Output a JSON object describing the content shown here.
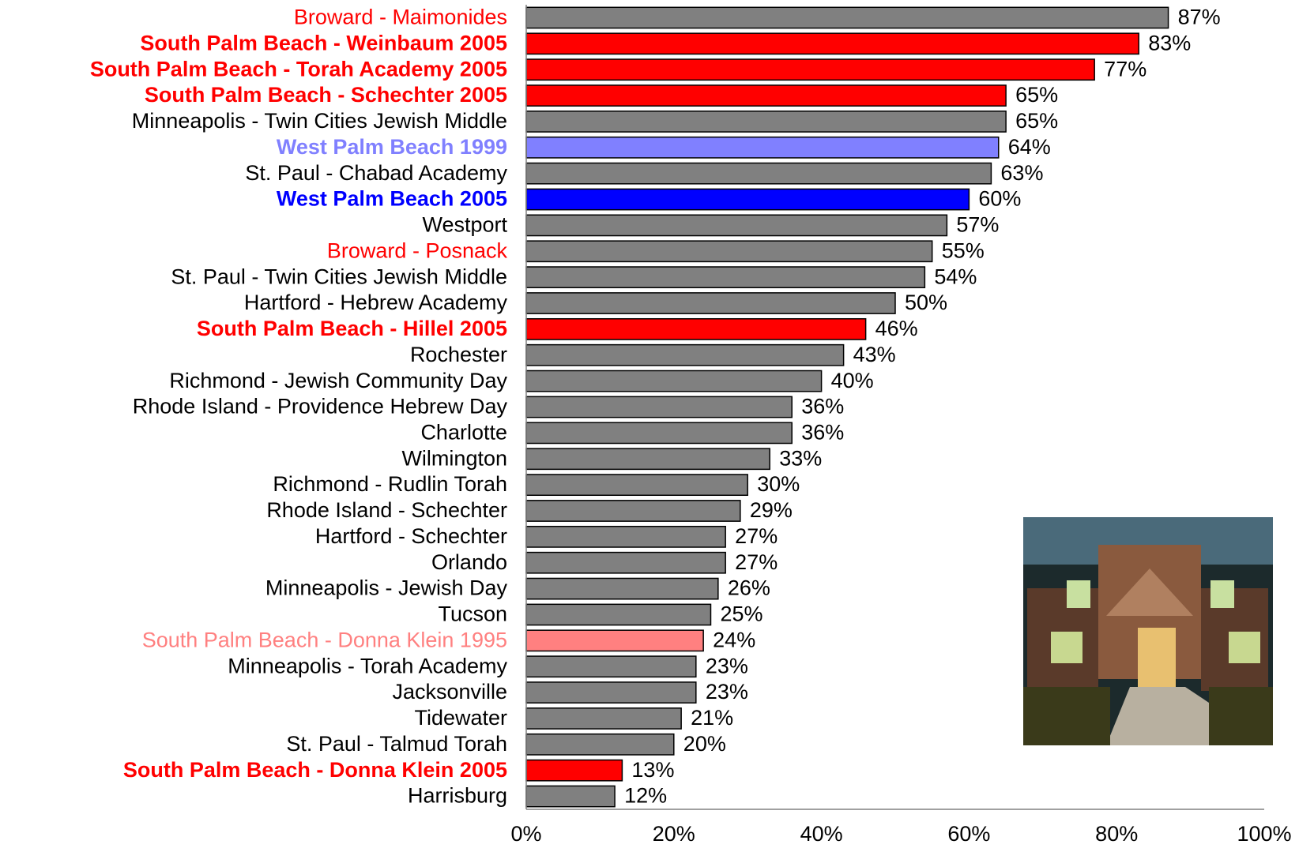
{
  "chart_data": {
    "type": "bar",
    "orientation": "horizontal",
    "categories": [
      "Broward - Maimonides",
      "South Palm Beach - Weinbaum 2005",
      "South Palm Beach - Torah Academy 2005",
      "South Palm Beach - Schechter 2005",
      "Minneapolis - Twin Cities Jewish Middle",
      "West Palm Beach 1999",
      "St. Paul - Chabad Academy",
      "West Palm Beach 2005",
      "Westport",
      "Broward - Posnack",
      "St. Paul - Twin Cities Jewish Middle",
      "Hartford - Hebrew Academy",
      "South Palm Beach - Hillel 2005",
      "Rochester",
      "Richmond - Jewish Community Day",
      "Rhode Island - Providence Hebrew Day",
      "Charlotte",
      "Wilmington",
      "Richmond - Rudlin Torah",
      "Rhode Island - Schechter",
      "Hartford - Schechter",
      "Orlando",
      "Minneapolis - Jewish Day",
      "Tucson",
      "South Palm Beach - Donna Klein 1995",
      "Minneapolis - Torah Academy",
      "Jacksonville",
      "Tidewater",
      "St. Paul - Talmud Torah",
      "South Palm Beach - Donna Klein 2005",
      "Harrisburg"
    ],
    "values": [
      87,
      83,
      77,
      65,
      65,
      64,
      63,
      60,
      57,
      55,
      54,
      50,
      46,
      43,
      40,
      36,
      36,
      33,
      30,
      29,
      27,
      27,
      26,
      25,
      24,
      23,
      23,
      21,
      20,
      13,
      12
    ],
    "value_labels": [
      "87%",
      "83%",
      "77%",
      "65%",
      "65%",
      "64%",
      "63%",
      "60%",
      "57%",
      "55%",
      "54%",
      "50%",
      "46%",
      "43%",
      "40%",
      "36%",
      "36%",
      "33%",
      "30%",
      "29%",
      "27%",
      "27%",
      "26%",
      "25%",
      "24%",
      "23%",
      "23%",
      "21%",
      "20%",
      "13%",
      "12%"
    ],
    "colors": [
      "#808080",
      "#ff0000",
      "#ff0000",
      "#ff0000",
      "#808080",
      "#8080ff",
      "#808080",
      "#0000ff",
      "#808080",
      "#808080",
      "#808080",
      "#808080",
      "#ff0000",
      "#808080",
      "#808080",
      "#808080",
      "#808080",
      "#808080",
      "#808080",
      "#808080",
      "#808080",
      "#808080",
      "#808080",
      "#808080",
      "#ff8080",
      "#808080",
      "#808080",
      "#808080",
      "#808080",
      "#ff0000",
      "#808080"
    ],
    "label_colors": [
      "#ff0000",
      "#ff0000",
      "#ff0000",
      "#ff0000",
      "#000000",
      "#8080ff",
      "#000000",
      "#0000ff",
      "#000000",
      "#ff0000",
      "#000000",
      "#000000",
      "#ff0000",
      "#000000",
      "#000000",
      "#000000",
      "#000000",
      "#000000",
      "#000000",
      "#000000",
      "#000000",
      "#000000",
      "#000000",
      "#000000",
      "#ff8080",
      "#000000",
      "#000000",
      "#000000",
      "#000000",
      "#ff0000",
      "#000000"
    ],
    "label_bold": [
      false,
      true,
      true,
      true,
      false,
      true,
      false,
      true,
      false,
      false,
      false,
      false,
      true,
      false,
      false,
      false,
      false,
      false,
      false,
      false,
      false,
      false,
      false,
      false,
      false,
      false,
      false,
      false,
      false,
      true,
      false
    ],
    "xlim": [
      0,
      100
    ],
    "xticks": [
      {
        "value": 0,
        "label": "0%"
      },
      {
        "value": 20,
        "label": "20%"
      },
      {
        "value": 40,
        "label": "40%"
      },
      {
        "value": 60,
        "label": "60%"
      },
      {
        "value": 80,
        "label": "80%"
      },
      {
        "value": 100,
        "label": "100%"
      }
    ],
    "grid": false
  }
}
